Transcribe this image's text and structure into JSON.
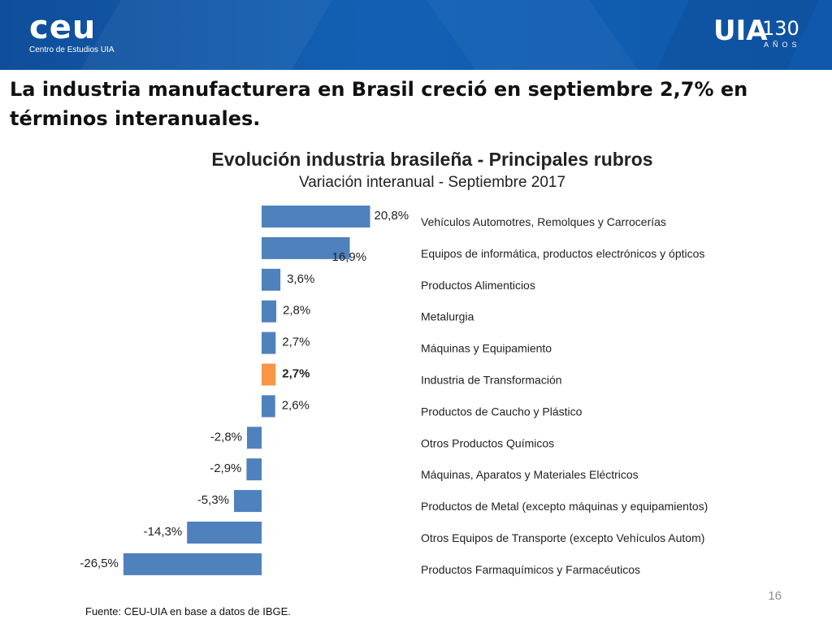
{
  "header": {
    "logo_left_main": "ceu",
    "logo_left_sub": "Centro de Estudios UIA",
    "logo_right_main": "UIA",
    "logo_right_years": "130",
    "logo_right_sub": "AÑOS"
  },
  "headline": "La industria manufacturera en Brasil creció en septiembre 2,7% en términos interanuales.",
  "page_number": "16",
  "source": "Fuente: CEU-UIA en base a datos de IBGE.",
  "colors": {
    "banner": "#1260b4",
    "bar": "#4f81bd",
    "highlight_bar": "#f79646"
  },
  "chart_data": {
    "type": "bar",
    "orientation": "horizontal",
    "title": "Evolución industria brasileña - Principales rubros",
    "subtitle": "Variación interanual - Septiembre 2017",
    "unit": "%",
    "categories": [
      "Vehículos Automotres, Remolques y Carrocerías",
      "Equipos de informática, productos electrónicos y ópticos",
      "Productos Alimenticios",
      "Metalurgia",
      "Máquinas y Equipamiento",
      "Industria de Transformación",
      "Productos de Caucho y Plástico",
      "Otros Productos Químicos",
      "Máquinas, Aparatos y Materiales Eléctricos",
      "Productos de Metal (excepto máquinas y equipamientos)",
      "Otros Equipos de Transporte (excepto Vehículos Autom)",
      "Productos Farmaquímicos y Farmacéuticos"
    ],
    "values": [
      20.8,
      16.9,
      3.6,
      2.8,
      2.7,
      2.7,
      2.6,
      -2.8,
      -2.9,
      -5.3,
      -14.3,
      -26.5
    ],
    "value_labels": [
      "20,8%",
      "16,9%",
      "3,6%",
      "2,8%",
      "2,7%",
      "2,7%",
      "2,6%",
      "-2,8%",
      "-2,9%",
      "-5,3%",
      "-14,3%",
      "-26,5%"
    ],
    "highlight_category": "Industria de Transformación",
    "grid": false,
    "legend": "none"
  }
}
